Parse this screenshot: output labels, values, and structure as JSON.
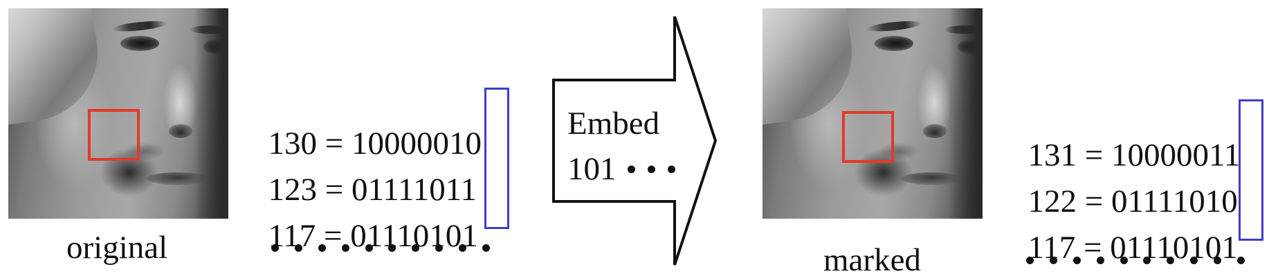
{
  "original": {
    "caption": "original",
    "equations": [
      {
        "decimal": "130",
        "binary_prefix": "1000001",
        "lsb": "0"
      },
      {
        "decimal": "123",
        "binary_prefix": "0111101",
        "lsb": "1"
      },
      {
        "decimal": "117",
        "binary_prefix": "0111010",
        "lsb": "1"
      }
    ],
    "continuation_dots": 10
  },
  "arrow": {
    "label": "Embed",
    "bits": "101"
  },
  "marked": {
    "caption": "marked",
    "equations": [
      {
        "decimal": "131",
        "binary_prefix": "1000001",
        "lsb": "1"
      },
      {
        "decimal": "122",
        "binary_prefix": "0111101",
        "lsb": "0"
      },
      {
        "decimal": "117",
        "binary_prefix": "0111010",
        "lsb": "1"
      }
    ],
    "continuation_dots": 10
  },
  "colors": {
    "highlight_box": "#e23a2a",
    "lsb_box": "#3e3ec8",
    "text": "#111111"
  }
}
